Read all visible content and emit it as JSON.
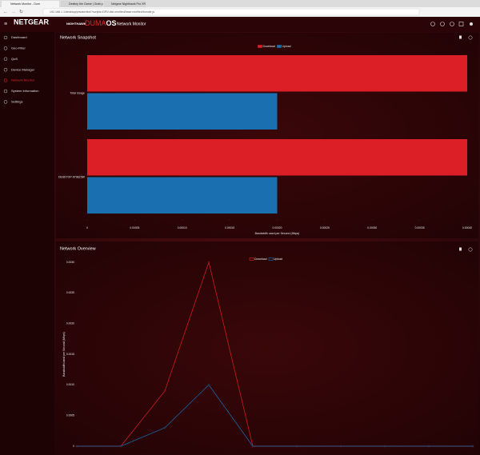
{
  "browser": {
    "tabs": [
      "Network Monitor - Dum",
      "Destiny the Game | Grab p",
      "Netgear Nighthawk Pro XR"
    ],
    "url": "192.168.1.1/desktop/private/dist/?scripts=DRV.dist.minified/base.minified/bundle.js"
  },
  "header": {
    "brand": "NETGEAR",
    "product": "NIGHTHAWK",
    "os_a": "DUMA",
    "os_b": "OS",
    "page": "Network Monitor"
  },
  "sidebar": {
    "items": [
      "Dashboard",
      "Geo-Filter",
      "QoS",
      "Device Manager",
      "Network Monitor",
      "System Information",
      "Settings"
    ],
    "active": 4
  },
  "chart_data": [
    {
      "type": "bar",
      "orientation": "horizontal",
      "title": "Network Snapshot",
      "categories": [
        "Total Usage",
        "DESKTOP-9798Z3W"
      ],
      "series": [
        {
          "name": "Download",
          "color": "#dc1f26",
          "values": [
            0.0004,
            0.0004
          ]
        },
        {
          "name": "Upload",
          "color": "#1a6fb0",
          "values": [
            0.0002,
            0.0002
          ]
        }
      ],
      "xlim": [
        0,
        0.0004
      ],
      "xticks": [
        0,
        {
          "value": 5e-05,
          "label": "0.00005"
        },
        {
          "value": 0.0001,
          "label": "0.00010"
        },
        {
          "value": 0.00015,
          "label": "0.00015"
        },
        {
          "value": 0.0002,
          "label": "0.00020"
        },
        {
          "value": 0.00025,
          "label": "0.00025"
        },
        {
          "value": 0.0003,
          "label": "0.00030"
        },
        {
          "value": 0.00035,
          "label": "0.00035"
        },
        {
          "value": 0.0004,
          "label": "0.00040"
        }
      ],
      "xlabel": "Bandwidth used per Second (Mbps)",
      "legend": "top"
    },
    {
      "type": "line",
      "title": "Network Overview",
      "categories": [
        null,
        null,
        null,
        null,
        null,
        null,
        null,
        null,
        null,
        null
      ],
      "series": [
        {
          "name": "Download",
          "color": "#dc1f26",
          "values": [
            0,
            0,
            0.0009,
            0.003,
            0,
            0,
            0,
            0,
            0,
            0
          ]
        },
        {
          "name": "Upload",
          "color": "#1a6fb0",
          "values": [
            0,
            0,
            0.0003,
            0.001,
            0,
            0,
            0,
            0,
            0,
            0
          ]
        }
      ],
      "ylim": [
        0,
        0.003
      ],
      "yticks": [
        0,
        {
          "value": 0.0005,
          "label": "0.0005"
        },
        {
          "value": 0.001,
          "label": "0.0010"
        },
        {
          "value": 0.0015,
          "label": "0.0015"
        },
        {
          "value": 0.002,
          "label": "0.0020"
        },
        {
          "value": 0.0025,
          "label": "0.0025"
        },
        {
          "value": 0.003,
          "label": "0.0030"
        }
      ],
      "ylabel": "Bandwidth used per Second (Mbps)",
      "legend": "top"
    }
  ]
}
